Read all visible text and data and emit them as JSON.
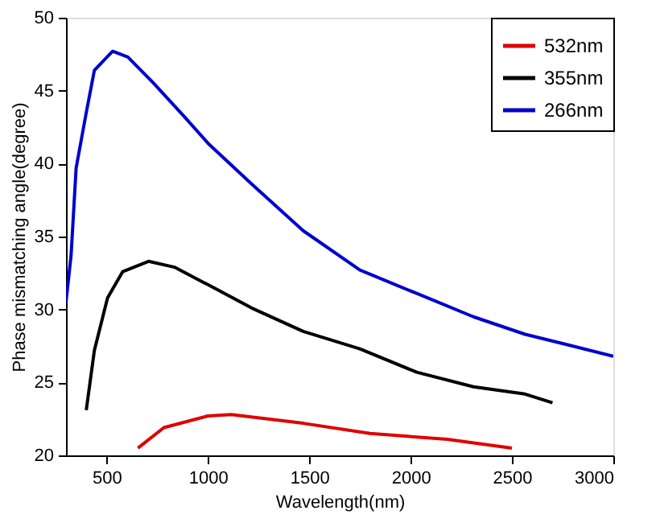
{
  "chart_data": {
    "type": "line",
    "xlabel": "Wavelength(nm)",
    "ylabel": "Phase mismatching angle(degree)",
    "xlim": [
      300,
      3000
    ],
    "ylim": [
      20,
      50
    ],
    "xticks": [
      500,
      1000,
      1500,
      2000,
      2500,
      3000
    ],
    "yticks": [
      20,
      25,
      30,
      35,
      40,
      45,
      50
    ],
    "grid": false,
    "legend": "top right",
    "marker": "none",
    "line_style": "solid",
    "series": [
      {
        "name": "532nm",
        "color": "#e00000",
        "x": [
          655,
          783,
          1000,
          1115,
          1470,
          1800,
          2180,
          2500
        ],
        "values": [
          20.5,
          21.9,
          22.7,
          22.8,
          22.2,
          21.5,
          21.1,
          20.5
        ]
      },
      {
        "name": "355nm",
        "color": "#000000",
        "x": [
          400,
          440,
          505,
          580,
          707,
          835,
          1000,
          1216,
          1470,
          1750,
          2030,
          2310,
          2565,
          2700
        ],
        "values": [
          23.1,
          27.2,
          30.8,
          32.6,
          33.3,
          32.9,
          31.7,
          30.1,
          28.5,
          27.3,
          25.7,
          24.7,
          24.2,
          23.6
        ]
      },
      {
        "name": "266nm",
        "color": "#0000cc",
        "x": [
          300,
          325,
          350,
          400,
          440,
          530,
          605,
          733,
          885,
          1000,
          1216,
          1470,
          1750,
          2030,
          2310,
          2565,
          2770,
          3000
        ],
        "values": [
          30.5,
          33.7,
          39.7,
          43.5,
          46.4,
          47.7,
          47.3,
          45.5,
          43.2,
          41.4,
          38.6,
          35.4,
          32.7,
          31.1,
          29.5,
          28.3,
          27.6,
          26.8
        ]
      }
    ]
  }
}
